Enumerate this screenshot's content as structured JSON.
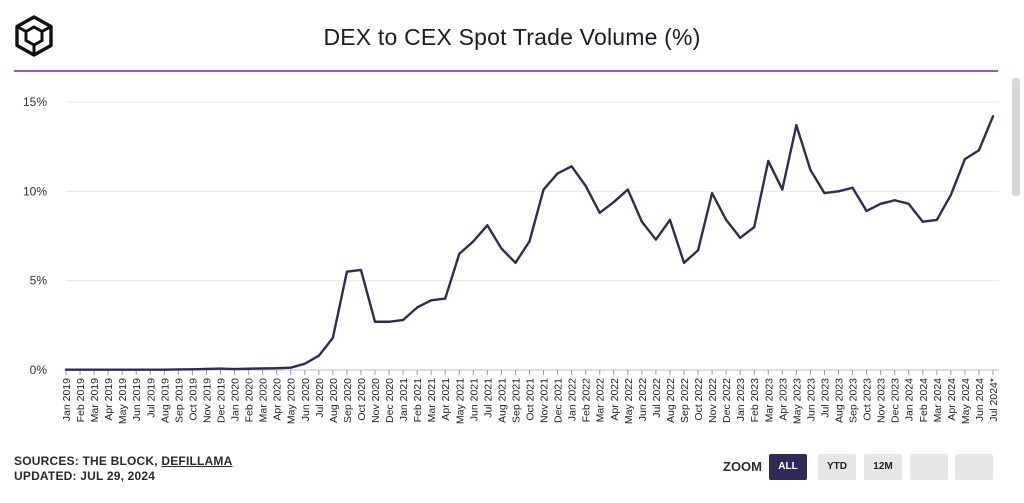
{
  "page": {
    "title": "DEX to CEX Spot Trade Volume (%)",
    "sources_label": "SOURCES: THE BLOCK, ",
    "sources_link": "DEFILLAMA",
    "updated": "UPDATED: JUL 29, 2024"
  },
  "zoom": {
    "label": "ZOOM",
    "buttons": [
      {
        "label": "ALL",
        "active": true
      },
      {
        "label": "YTD",
        "active": false
      },
      {
        "label": "12M",
        "active": false
      },
      {
        "label": "",
        "active": false
      },
      {
        "label": "",
        "active": false
      }
    ]
  },
  "colors": {
    "line": "#2f2b57",
    "accent_rule": "#9a52d6",
    "grid": "#e6e6e6",
    "active_button": "#2f2b57"
  },
  "chart_data": {
    "type": "line",
    "title": "DEX to CEX Spot Trade Volume (%)",
    "xlabel": "",
    "ylabel": "",
    "ylim": [
      0,
      15
    ],
    "yticks": [
      0,
      5,
      10,
      15
    ],
    "ytick_labels": [
      "0%",
      "5%",
      "10%",
      "15%"
    ],
    "grid": true,
    "legend": "none",
    "categories": [
      "Jan 2019",
      "Feb 2019",
      "Mar 2019",
      "Apr 2019",
      "May 2019",
      "Jun 2019",
      "Jul 2019",
      "Aug 2019",
      "Sep 2019",
      "Oct 2019",
      "Nov 2019",
      "Dec 2019",
      "Jan 2020",
      "Feb 2020",
      "Mar 2020",
      "Apr 2020",
      "May 2020",
      "Jun 2020",
      "Jul 2020",
      "Aug 2020",
      "Sep 2020",
      "Oct 2020",
      "Nov 2020",
      "Dec 2020",
      "Jan 2021",
      "Feb 2021",
      "Mar 2021",
      "Apr 2021",
      "May 2021",
      "Jun 2021",
      "Jul 2021",
      "Aug 2021",
      "Sep 2021",
      "Oct 2021",
      "Nov 2021",
      "Dec 2021",
      "Jan 2022",
      "Feb 2022",
      "Mar 2022",
      "Apr 2022",
      "May 2022",
      "Jun 2022",
      "Jul 2022",
      "Aug 2022",
      "Sep 2022",
      "Oct 2022",
      "Nov 2022",
      "Dec 2022",
      "Jan 2023",
      "Feb 2023",
      "Mar 2023",
      "Apr 2023",
      "May 2023",
      "Jun 2023",
      "Jul 2023",
      "Aug 2023",
      "Sep 2023",
      "Oct 2023",
      "Nov 2023",
      "Dec 2023",
      "Jan 2024",
      "Feb 2024",
      "Mar 2024",
      "Apr 2024",
      "May 2024",
      "Jun 2024",
      "Jul 2024*"
    ],
    "values": [
      0.02,
      0.02,
      0.02,
      0.02,
      0.02,
      0.02,
      0.02,
      0.02,
      0.03,
      0.04,
      0.06,
      0.08,
      0.05,
      0.07,
      0.09,
      0.1,
      0.13,
      0.35,
      0.8,
      1.8,
      5.5,
      5.6,
      2.7,
      2.7,
      2.8,
      3.5,
      3.9,
      4.0,
      6.5,
      7.2,
      8.1,
      6.8,
      6.0,
      7.2,
      10.1,
      11.0,
      11.4,
      10.3,
      8.8,
      9.4,
      10.1,
      8.3,
      7.3,
      8.4,
      6.0,
      6.7,
      9.9,
      8.4,
      7.4,
      8.0,
      11.7,
      10.1,
      13.7,
      11.2,
      9.9,
      10.0,
      10.2,
      8.9,
      9.3,
      9.5,
      9.3,
      8.3,
      8.4,
      9.8,
      11.8,
      12.3,
      14.2
    ]
  }
}
